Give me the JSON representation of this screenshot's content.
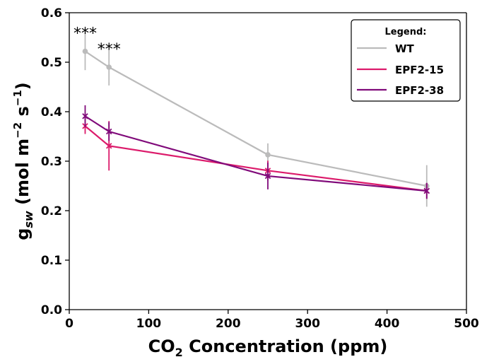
{
  "chart_data": {
    "type": "line",
    "xlabel_main": "CO",
    "xlabel_sub": "2",
    "xlabel_rest": " Concentration (ppm)",
    "ylabel_main": "g",
    "ylabel_sub": "sw",
    "ylabel_rest": " (mol m",
    "ylabel_exp1": "−2",
    "ylabel_mid": " s",
    "ylabel_exp2": "−1",
    "ylabel_end": ")",
    "xlim": [
      0,
      500
    ],
    "ylim": [
      0.0,
      0.6
    ],
    "xticks": [
      "0",
      "100",
      "200",
      "300",
      "400",
      "500"
    ],
    "yticks": [
      "0.0",
      "0.1",
      "0.2",
      "0.3",
      "0.4",
      "0.5",
      "0.6"
    ],
    "legend": {
      "title": "Legend:",
      "position": "top-right"
    },
    "grid": false,
    "series": [
      {
        "name": "WT",
        "color": "#bbbbbb",
        "marker": "circle",
        "x": [
          20,
          50,
          250,
          450
        ],
        "y": [
          0.522,
          0.49,
          0.313,
          0.25
        ],
        "err": [
          0.038,
          0.037,
          0.023,
          0.042
        ]
      },
      {
        "name": "EPF2-15",
        "color": "#dc1b6b",
        "marker": "x",
        "x": [
          20,
          50,
          250,
          450
        ],
        "y": [
          0.371,
          0.331,
          0.281,
          0.24
        ],
        "err": [
          0.016,
          0.05,
          0.02,
          0.016
        ]
      },
      {
        "name": "EPF2-38",
        "color": "#800a7a",
        "marker": "x",
        "x": [
          20,
          50,
          250,
          450
        ],
        "y": [
          0.391,
          0.36,
          0.27,
          0.24
        ],
        "err": [
          0.022,
          0.019,
          0.027,
          0.016
        ]
      }
    ],
    "annotations": [
      {
        "text": "***",
        "x": 20,
        "y": 0.565
      },
      {
        "text": "***",
        "x": 50,
        "y": 0.533
      }
    ]
  }
}
